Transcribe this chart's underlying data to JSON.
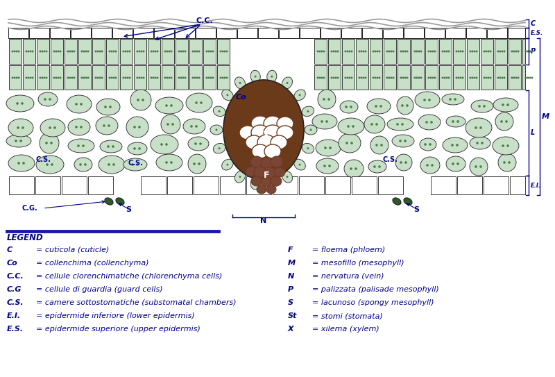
{
  "bg_color": "#ffffff",
  "cell_stroke": "#222222",
  "cuticle_color": "#999999",
  "green_light": "#c8dfc8",
  "green_mid": "#b8d4b8",
  "vein_brown": "#6b3a1a",
  "vein_phloem": "#7a4a3a",
  "label_color": "#00008b",
  "legend_line_color": "#1a1aaa",
  "guard_color": "#2d5a27",
  "white": "#ffffff",
  "legend_left": [
    [
      "C",
      "= cuticola (cuticle)"
    ],
    [
      "Co",
      "= collenchima (collenchyma)"
    ],
    [
      "C.C.",
      "= cellule clorenchimatiche (chlorenchyma cells)"
    ],
    [
      "C.G",
      "= cellule di guardia (guard cells)"
    ],
    [
      "C.S.",
      "= camere sottostomatiche (substomatal chambers)"
    ],
    [
      "E.I.",
      "= epidermide inferiore (lower epidermis)"
    ],
    [
      "E.S.",
      "= epidermide superiore (upper epidermis)"
    ]
  ],
  "legend_right": [
    [
      "F",
      "= floema (phloem)"
    ],
    [
      "M",
      "= mesofillo (mesophyll)"
    ],
    [
      "N",
      "= nervatura (vein)"
    ],
    [
      "P",
      "= palizzata (palisade mesophyll)"
    ],
    [
      "S",
      "= lacunoso (spongy mesophyll)"
    ],
    [
      "St",
      "= stomi (stomata)"
    ],
    [
      "X",
      "= xilema (xylem)"
    ]
  ]
}
